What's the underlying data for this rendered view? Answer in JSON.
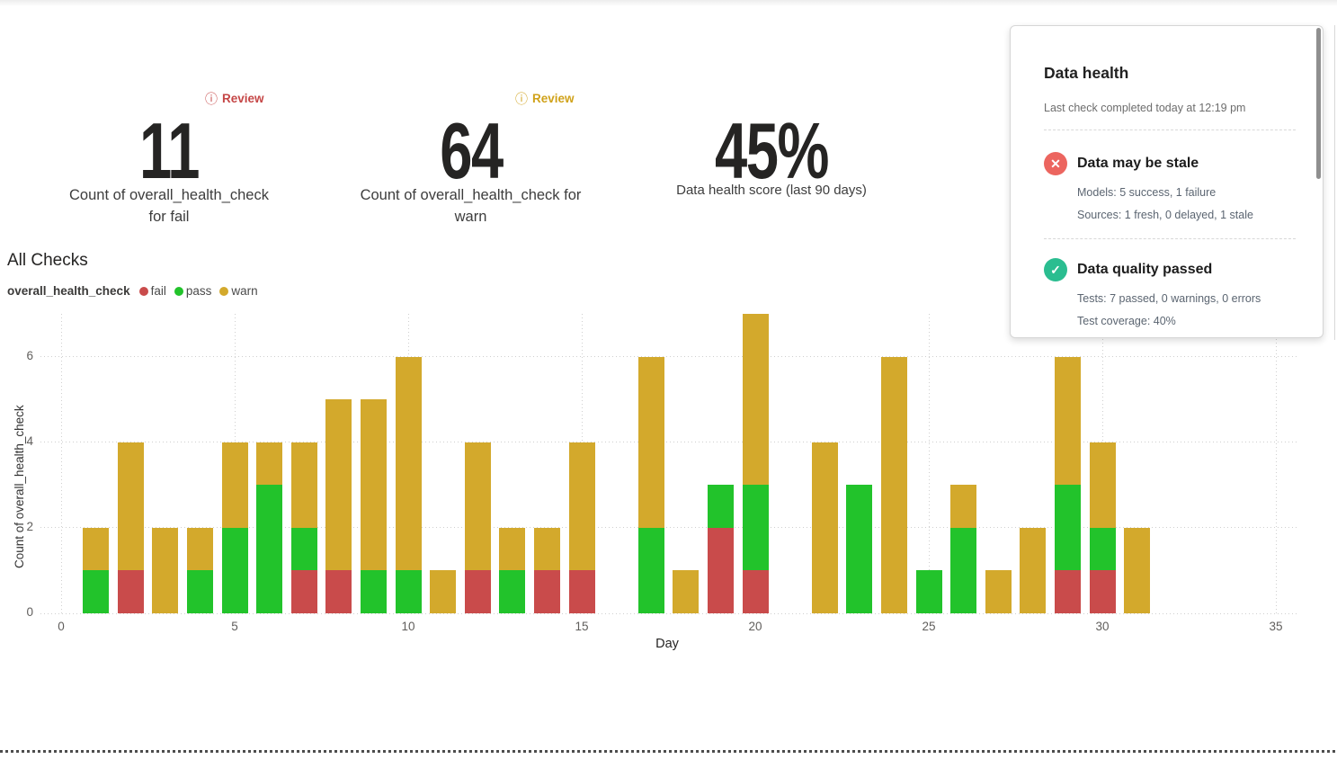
{
  "kpis": [
    {
      "badge": "Review",
      "badge_color": "#c54646",
      "value": "11",
      "label_line1": "Count of overall_health_check",
      "label_line2": "for fail"
    },
    {
      "badge": "Review",
      "badge_color": "#d0a21a",
      "value": "64",
      "label_line1": "Count of overall_health_check for",
      "label_line2": "warn"
    },
    {
      "value": "45%",
      "label_line1": "Data health score (last 90 days)"
    }
  ],
  "chart": {
    "section_title": "All Checks",
    "legend_title": "overall_health_check",
    "legend_items": [
      {
        "label": "fail",
        "color": "#c94b4b"
      },
      {
        "label": "pass",
        "color": "#22c32b"
      },
      {
        "label": "warn",
        "color": "#d3a92c"
      }
    ],
    "x_axis_label": "Day",
    "y_axis_label": "Count of overall_health_check",
    "x_ticks": [
      0,
      5,
      10,
      15,
      20,
      25,
      30,
      35
    ],
    "y_ticks": [
      0,
      2,
      4,
      6
    ]
  },
  "chart_data": {
    "type": "bar",
    "stacked": true,
    "title": "All Checks",
    "xlabel": "Day",
    "ylabel": "Count of overall_health_check",
    "xlim": [
      0,
      35
    ],
    "ylim": [
      0,
      7
    ],
    "grid": "dotted",
    "legend_position": "top-left",
    "x": [
      1,
      2,
      3,
      4,
      5,
      6,
      7,
      8,
      9,
      10,
      11,
      12,
      13,
      14,
      15,
      16,
      17,
      18,
      19,
      20,
      21,
      22,
      23,
      24,
      25,
      26,
      27,
      28,
      29,
      30,
      31
    ],
    "series": [
      {
        "name": "fail",
        "color": "#c94b4b",
        "values": [
          0,
          1,
          0,
          0,
          0,
          0,
          1,
          1,
          0,
          0,
          0,
          1,
          0,
          1,
          1,
          0,
          0,
          0,
          2,
          1,
          0,
          0,
          0,
          0,
          0,
          0,
          0,
          0,
          1,
          1,
          0
        ]
      },
      {
        "name": "pass",
        "color": "#22c32b",
        "values": [
          1,
          0,
          0,
          1,
          2,
          3,
          1,
          0,
          1,
          1,
          0,
          0,
          1,
          0,
          0,
          0,
          2,
          0,
          1,
          2,
          0,
          0,
          3,
          0,
          1,
          2,
          0,
          0,
          2,
          1,
          0
        ]
      },
      {
        "name": "warn",
        "color": "#d3a92c",
        "values": [
          1,
          3,
          2,
          1,
          2,
          1,
          2,
          4,
          4,
          5,
          1,
          3,
          1,
          1,
          3,
          0,
          4,
          1,
          0,
          4,
          0,
          4,
          0,
          6,
          0,
          1,
          1,
          2,
          3,
          2,
          2
        ]
      }
    ]
  },
  "panel": {
    "title": "Data health",
    "subtitle": "Last check completed today at 12:19 pm",
    "sections": [
      {
        "icon": "✕",
        "icon_color": "#ec655f",
        "title": "Data may be stale",
        "lines": [
          "Models: 5 success, 1 failure",
          "Sources: 1 fresh, 0 delayed, 1 stale"
        ]
      },
      {
        "icon": "✓",
        "icon_color": "#2abd90",
        "title": "Data quality passed",
        "lines": [
          "Tests: 7 passed, 0 warnings, 0 errors",
          "Test coverage: 40%"
        ]
      }
    ]
  }
}
